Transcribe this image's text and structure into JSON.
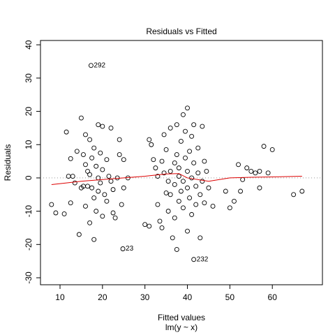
{
  "chart_data": {
    "type": "scatter",
    "title": "Residuals vs Fitted",
    "x_label": "Fitted values",
    "subtitle": "lm(y ~ x)",
    "y_label": "Residuals",
    "xlim": [
      5.4,
      71.8
    ],
    "ylim": [
      -32.1,
      41.3
    ],
    "xticks": [
      10,
      20,
      30,
      40,
      50,
      60
    ],
    "yticks": [
      -30,
      -20,
      -10,
      0,
      10,
      20,
      30,
      40
    ],
    "reference_line": 0,
    "series": [
      {
        "color": "#000000",
        "x": [
          8,
          9,
          11,
          11.5,
          12,
          12.5,
          12.5,
          13,
          13.5,
          14,
          14.5,
          15,
          15,
          15.5,
          15.5,
          16,
          16,
          16,
          16.5,
          16.5,
          17,
          17,
          17,
          17.5,
          17.5,
          18,
          18,
          18,
          18.5,
          18.5,
          19,
          19,
          19,
          19.5,
          19.5,
          20,
          20,
          20,
          20.5,
          21,
          21,
          21.5,
          22,
          22,
          22.5,
          22.5,
          23,
          23.5,
          24,
          24,
          24.5,
          25,
          25,
          26,
          17.3,
          24.8,
          30,
          31,
          31,
          31.5,
          32,
          32.5,
          33,
          33,
          33.5,
          34,
          34,
          34.5,
          34.5,
          35,
          35,
          35.5,
          35.5,
          36,
          36,
          36,
          36.5,
          37,
          37,
          37,
          37.5,
          37.5,
          37.5,
          38,
          38,
          38,
          38.5,
          38.5,
          39,
          39,
          39,
          39.5,
          39.5,
          40,
          40,
          40,
          40,
          40.5,
          40.5,
          41,
          41,
          41,
          41.5,
          41.5,
          42,
          42,
          42.5,
          42.5,
          43,
          43,
          43.5,
          43.5,
          44,
          44,
          44.5,
          45,
          46,
          41.5,
          49,
          50,
          51,
          52,
          52.5,
          53,
          54,
          55,
          56,
          57,
          57,
          58,
          59,
          60,
          65,
          67
        ],
        "values": [
          -8,
          -10.5,
          -10.8,
          13.8,
          0.5,
          -7.5,
          5.8,
          0.5,
          -1.5,
          8,
          -17,
          18,
          -3,
          -2.5,
          7,
          13,
          4,
          -8.5,
          -2.5,
          2,
          -13.5,
          11.5,
          1,
          -3,
          6,
          -18.5,
          9,
          -6,
          -10,
          3.5,
          16,
          -4,
          0,
          7.5,
          -1.5,
          15.5,
          2.5,
          -11.5,
          -5,
          5.5,
          -7,
          0.5,
          15,
          -1,
          -3.5,
          -10.5,
          -12,
          0,
          11.5,
          7,
          -8,
          -3,
          5.5,
          0,
          33.8,
          -21.3,
          -14,
          11.5,
          -14.5,
          10,
          5.5,
          3,
          0.5,
          -8,
          -13,
          5,
          -15,
          13,
          1.5,
          -4.5,
          8.5,
          -1,
          -10,
          2,
          -5,
          15,
          -18,
          4.5,
          -2,
          -12,
          16,
          7,
          -21.5,
          0.5,
          -7,
          3,
          11,
          -4,
          19,
          -9,
          -1,
          6,
          14,
          21,
          -3,
          2,
          -16,
          8,
          -6,
          12.5,
          -11,
          0,
          16,
          4.5,
          -2.5,
          -8,
          9,
          1.5,
          -18,
          -5,
          15.5,
          -1,
          5,
          -7.5,
          2,
          -3,
          -8.5,
          -24.5,
          -4,
          -9,
          -7,
          4,
          -4,
          -0.5,
          3,
          2,
          1.5,
          -3,
          2,
          9.5,
          1.5,
          8.5,
          -5,
          -4
        ]
      }
    ],
    "smooth": {
      "color": "#dd0000",
      "x": [
        8,
        15,
        25,
        30,
        35,
        38,
        40,
        45,
        50,
        55,
        60,
        67
      ],
      "values": [
        -2,
        -1,
        0,
        0.5,
        1.2,
        1.3,
        0,
        -1,
        0,
        0.2,
        0.3,
        0.5
      ]
    },
    "annotations": [
      {
        "text": "292",
        "x": 17.3,
        "y": 33.8
      },
      {
        "text": "23",
        "x": 24.8,
        "y": -21.3
      },
      {
        "text": "232",
        "x": 41.5,
        "y": -24.5
      }
    ]
  }
}
